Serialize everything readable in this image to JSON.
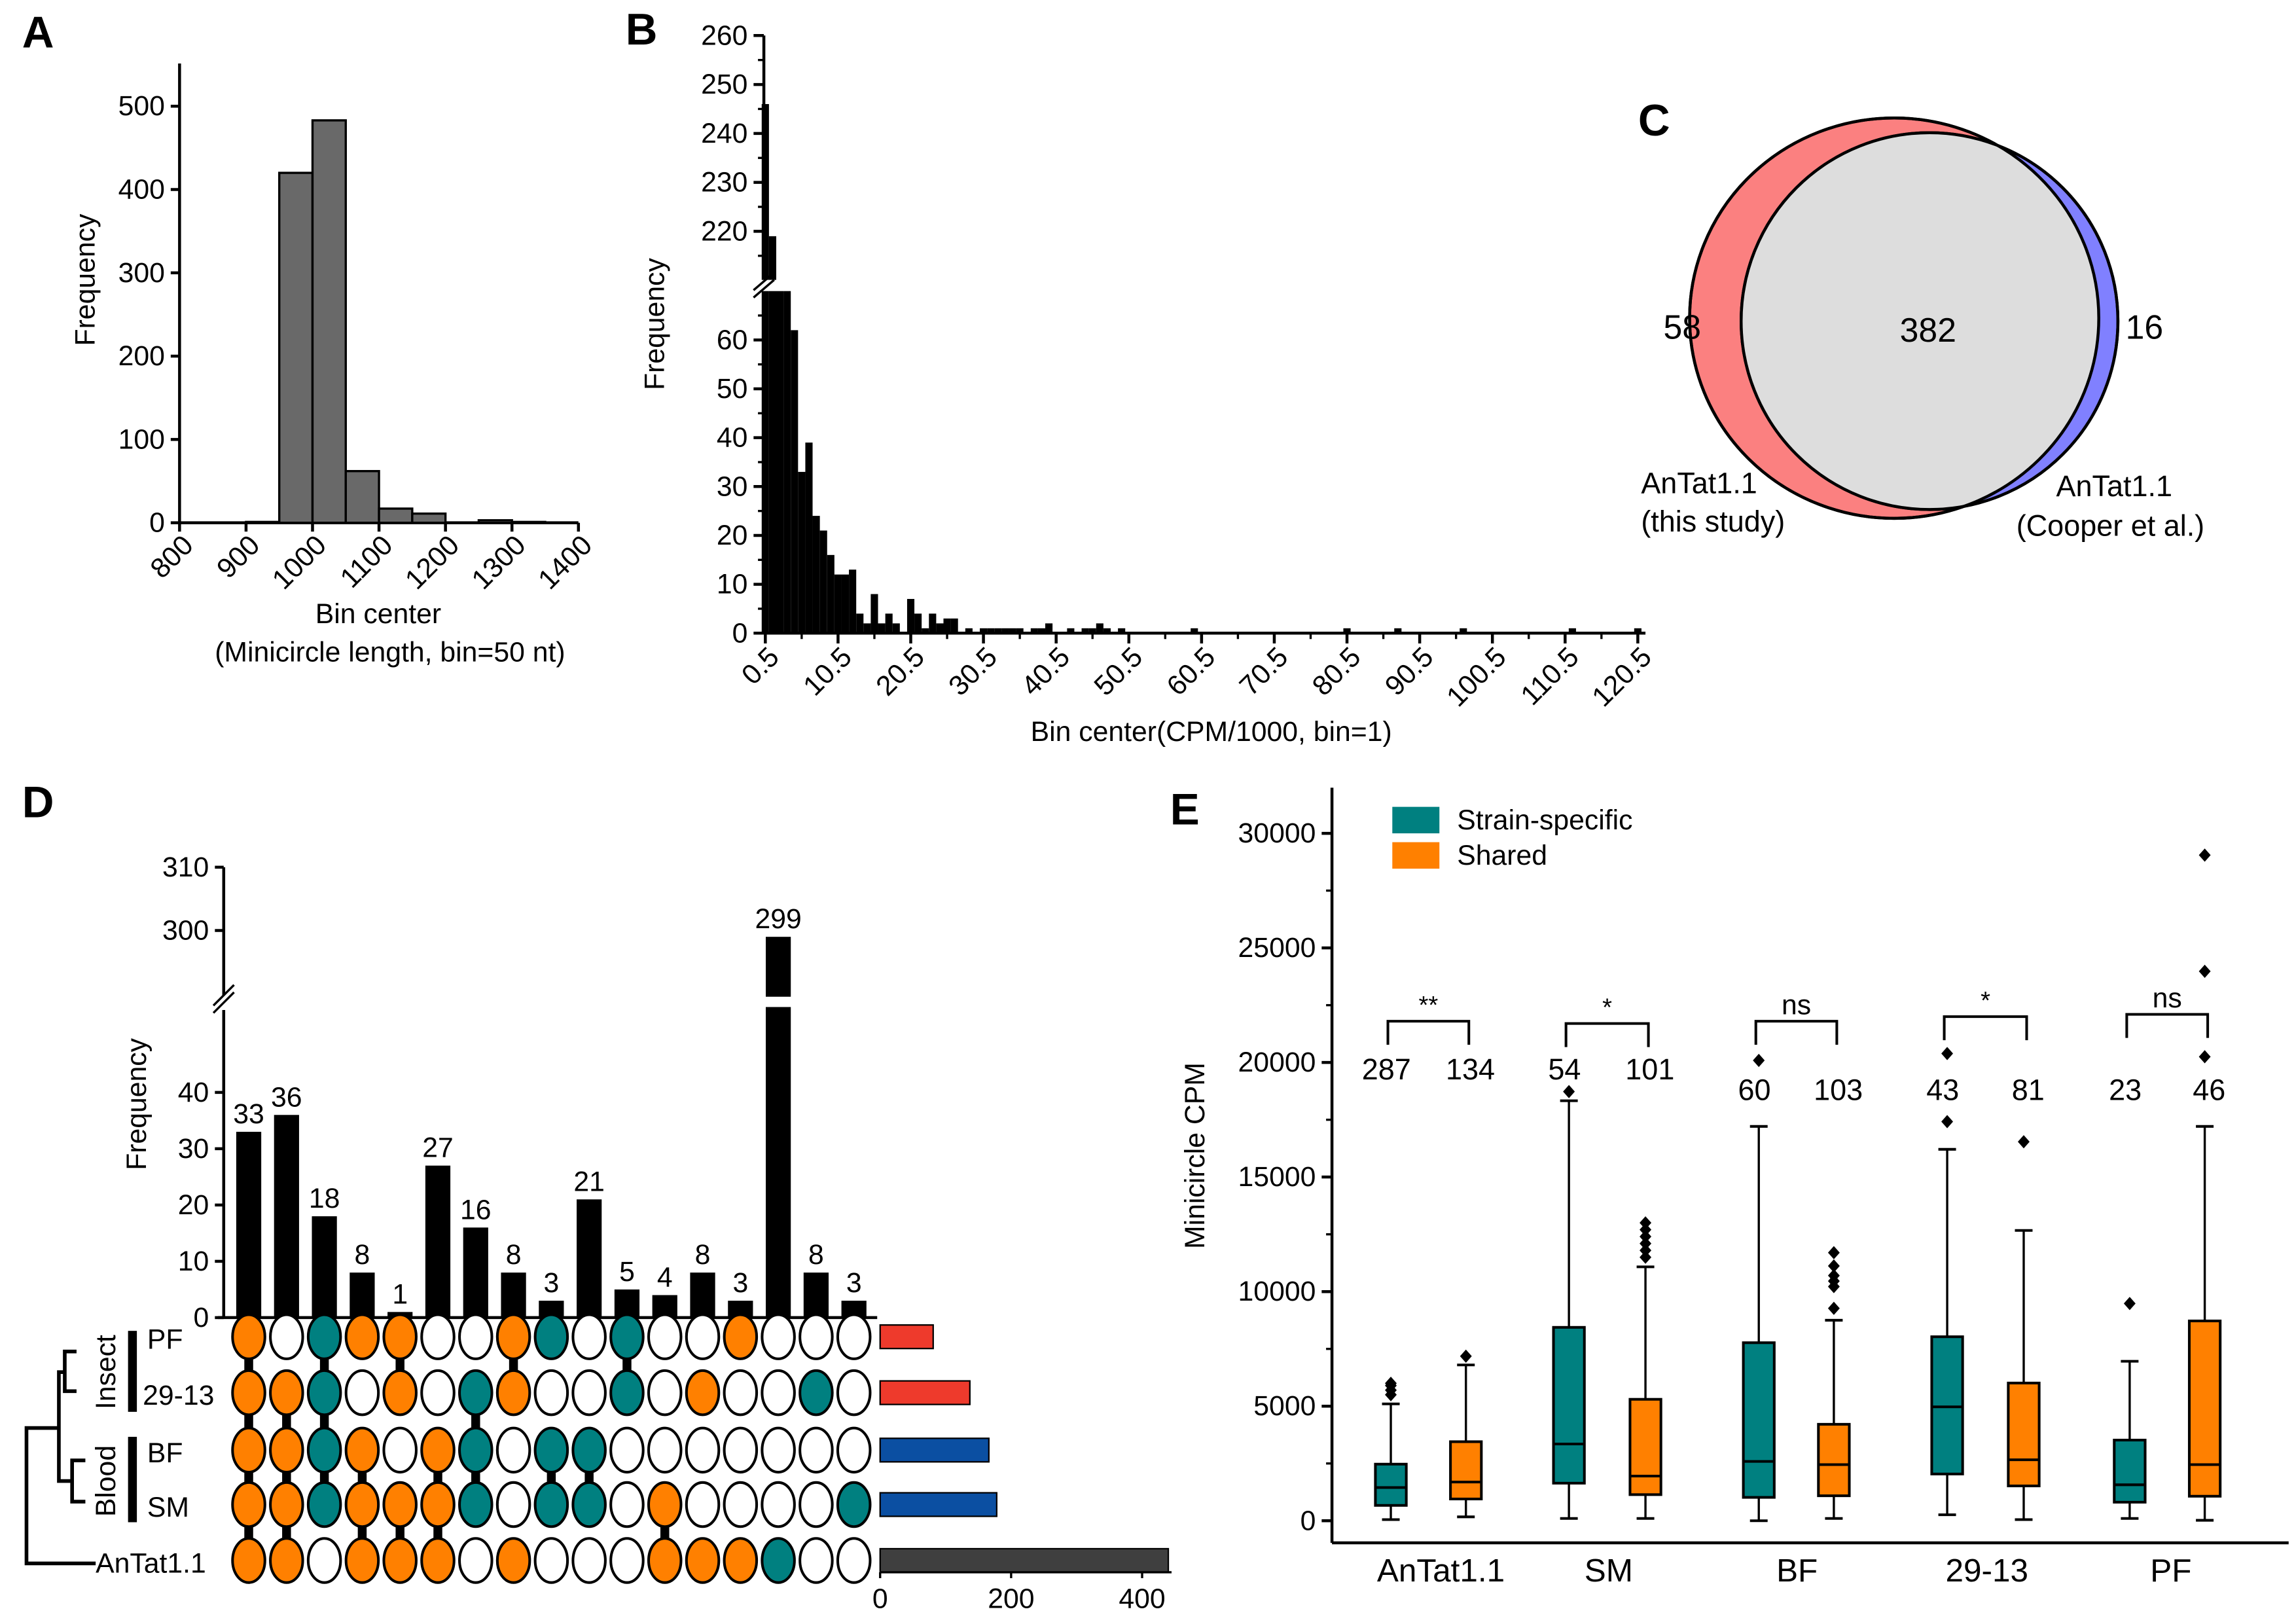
{
  "colors": {
    "hist_bar": "#696969",
    "venn_left": "#fb8080",
    "venn_right": "#8080ff",
    "venn_overlap": "#dddddd",
    "strain_specific": "#008080",
    "shared": "#ff8000",
    "insect_bar": "#ee3a2c",
    "blood_bar": "#0b4fa2",
    "antat_bar": "#3f3f3f"
  },
  "chart_data": [
    {
      "panel": "A",
      "type": "bar",
      "ylabel": "Frequency",
      "xlabel": "Bin center",
      "xlabel2": "(Minicircle length, bin=50 nt)",
      "xlim": [
        800,
        1400
      ],
      "ylim": [
        0,
        550
      ],
      "xticks": [
        "800",
        "900",
        "1000",
        "1100",
        "1200",
        "1300",
        "1400"
      ],
      "yticks": [
        "0",
        "100",
        "200",
        "300",
        "400",
        "500"
      ],
      "bin_centers": [
        925,
        975,
        1025,
        1075,
        1125,
        1175,
        1225,
        1275,
        1325
      ],
      "values": [
        1,
        420,
        483,
        62,
        17,
        11,
        0,
        3,
        1
      ]
    },
    {
      "panel": "B",
      "type": "bar",
      "ylabel": "Frequency",
      "xlabel": "Bin center(CPM/1000, bin=1)",
      "broken_y_axis": {
        "lower": [
          0,
          70
        ],
        "upper": [
          210,
          260
        ]
      },
      "xticks": [
        "0.5",
        "10.5",
        "20.5",
        "30.5",
        "40.5",
        "50.5",
        "60.5",
        "70.5",
        "80.5",
        "90.5",
        "100.5",
        "110.5",
        "120.5"
      ],
      "yticks_lower": [
        "0",
        "10",
        "20",
        "30",
        "40",
        "50",
        "60"
      ],
      "yticks_upper": [
        "220",
        "230",
        "240",
        "250",
        "260"
      ],
      "bin_centers": [
        0.5,
        1.5,
        2.5,
        3.5,
        4.5,
        5.5,
        6.5,
        7.5,
        8.5,
        9.5,
        10.5,
        11.5,
        12.5,
        13.5,
        14.5,
        15.5,
        16.5,
        17.5,
        18.5,
        20.5,
        21.5,
        22.5,
        23.5,
        24.5,
        25.5,
        26.5,
        28.5,
        30.5,
        31.5,
        32.5,
        33.5,
        34.5,
        35.5,
        37.5,
        38.5,
        39.5,
        42.5,
        44.5,
        45.5,
        46.5,
        47.5,
        49.5,
        59.5,
        80.5,
        87.5,
        96.5,
        111.5,
        120.5
      ],
      "values": [
        246,
        219,
        70,
        70,
        62,
        33,
        39,
        24,
        21,
        16,
        12,
        12,
        13,
        4,
        2,
        8,
        2,
        4,
        2,
        7,
        4,
        1,
        4,
        2,
        3,
        3,
        1,
        1,
        1,
        1,
        1,
        1,
        1,
        1,
        1,
        2,
        1,
        1,
        1,
        2,
        1,
        1,
        1,
        1,
        1,
        1,
        1,
        1
      ]
    },
    {
      "panel": "C",
      "type": "venn",
      "left_only": "58",
      "overlap": "382",
      "right_only": "16",
      "left_label": [
        "AnTat1.1",
        "(this study)"
      ],
      "right_label": [
        "AnTat1.1",
        "(Cooper et al.)"
      ]
    },
    {
      "panel": "D",
      "type": "upset",
      "ylabel": "Frequency",
      "broken_y_axis": {
        "lower": [
          0,
          48
        ],
        "upper": [
          290,
          310
        ]
      },
      "yticks_lower": [
        "0",
        "10",
        "20",
        "30",
        "40"
      ],
      "yticks_upper": [
        "300",
        "310"
      ],
      "intersection_sizes": [
        33,
        36,
        18,
        8,
        1,
        27,
        16,
        8,
        3,
        21,
        5,
        4,
        8,
        3,
        299,
        8,
        3
      ],
      "sets": [
        {
          "name": "PF",
          "size": 81,
          "color": "#ee3a2c",
          "pattern": "owtoowwotwtwwowww"
        },
        {
          "name": "29-13",
          "size": 137,
          "color": "#ee3a2c",
          "pattern": "ootwowtowwtwowwtw"
        },
        {
          "name": "BF",
          "size": 166,
          "color": "#0b4fa2",
          "pattern": "ootowotwttwwwwwww"
        },
        {
          "name": "SM",
          "size": 178,
          "color": "#0b4fa2",
          "pattern": "ootoootwttwowwwwt"
        },
        {
          "name": "AnTat1.1",
          "size": 440,
          "color": "#3f3f3f",
          "pattern": "oowooowowwwoootww"
        }
      ],
      "groups": [
        "Insect",
        "Blood"
      ],
      "set_size_ticks": [
        "0",
        "200",
        "400"
      ],
      "set_size_xlim": [
        0,
        440
      ]
    },
    {
      "panel": "E",
      "type": "box",
      "ylabel": "Minicircle CPM",
      "ylim": [
        0,
        32000
      ],
      "yticks": [
        "0",
        "5000",
        "10000",
        "15000",
        "20000",
        "25000",
        "30000"
      ],
      "legend": [
        {
          "name": "Strain-specific",
          "color": "#008080"
        },
        {
          "name": "Shared",
          "color": "#ff8000"
        }
      ],
      "legend_position": "top-left",
      "categories": [
        "AnTat1.1",
        "SM",
        "BF",
        "29-13",
        "PF"
      ],
      "significance": [
        "**",
        "*",
        "ns",
        "*",
        "ns"
      ],
      "series": [
        {
          "name": "Strain-specific",
          "counts": [
            "287",
            "54",
            "60",
            "43",
            "23"
          ],
          "boxes": [
            {
              "low": 50,
              "q1": 670,
              "median": 1450,
              "q3": 2470,
              "high": 5100,
              "outliers": [
                5500,
                5700,
                5900,
                6000
              ]
            },
            {
              "low": 100,
              "q1": 1640,
              "median": 3350,
              "q3": 8440,
              "high": 18330,
              "outliers": [
                18730
              ]
            },
            {
              "low": 0,
              "q1": 1020,
              "median": 2590,
              "q3": 7770,
              "high": 17210,
              "outliers": [
                20090
              ]
            },
            {
              "low": 260,
              "q1": 2040,
              "median": 4970,
              "q3": 8030,
              "high": 16210,
              "outliers": [
                17420,
                20390
              ]
            },
            {
              "low": 100,
              "q1": 810,
              "median": 1570,
              "q3": 3520,
              "high": 6960,
              "outliers": [
                9480
              ]
            }
          ]
        },
        {
          "name": "Shared",
          "counts": [
            "134",
            "101",
            "103",
            "81",
            "46"
          ],
          "boxes": [
            {
              "low": 170,
              "q1": 950,
              "median": 1690,
              "q3": 3450,
              "high": 6800,
              "outliers": [
                7180
              ]
            },
            {
              "low": 100,
              "q1": 1140,
              "median": 1950,
              "q3": 5300,
              "high": 11080,
              "outliers": [
                11500,
                11800,
                12100,
                12400,
                12700,
                13000
              ]
            },
            {
              "low": 100,
              "q1": 1090,
              "median": 2450,
              "q3": 4210,
              "high": 8750,
              "outliers": [
                9270,
                10220,
                10460,
                10700,
                11120,
                11700
              ]
            },
            {
              "low": 50,
              "q1": 1520,
              "median": 2660,
              "q3": 6010,
              "high": 12670,
              "outliers": [
                16540
              ]
            },
            {
              "low": 20,
              "q1": 1070,
              "median": 2450,
              "q3": 8720,
              "high": 17210,
              "outliers": [
                20250,
                23980,
                29050
              ]
            }
          ]
        }
      ]
    }
  ],
  "panel_letters": [
    "A",
    "B",
    "C",
    "D",
    "E"
  ]
}
